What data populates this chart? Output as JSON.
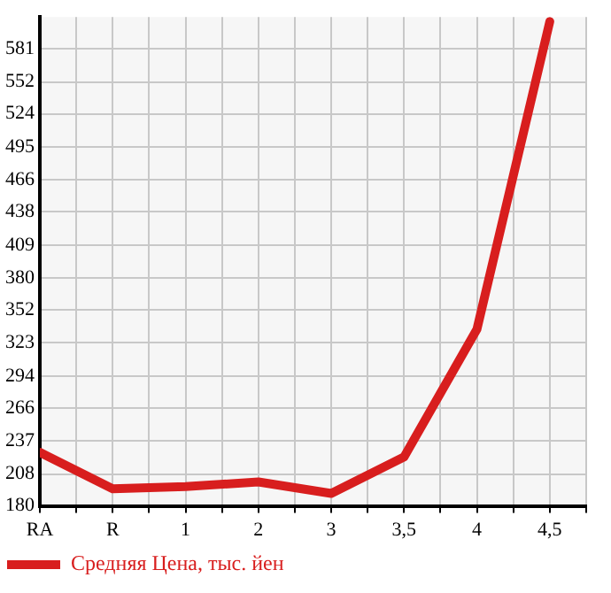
{
  "chart_data": {
    "type": "line",
    "categories": [
      "RA",
      "R",
      "1",
      "2",
      "3",
      "3,5",
      "4",
      "4,5"
    ],
    "series": [
      {
        "name": "Средняя Цена, тыс. йен",
        "color": "#d81e1e",
        "values": [
          227,
          195,
          197,
          201,
          191,
          223,
          335,
          605
        ]
      }
    ],
    "ylim": [
      180,
      609
    ],
    "yticks": [
      180,
      208,
      237,
      266,
      294,
      323,
      352,
      380,
      409,
      438,
      466,
      495,
      524,
      552,
      581
    ],
    "grid": true,
    "legend": "bottom left",
    "marker": "none",
    "line_style": "solid"
  }
}
